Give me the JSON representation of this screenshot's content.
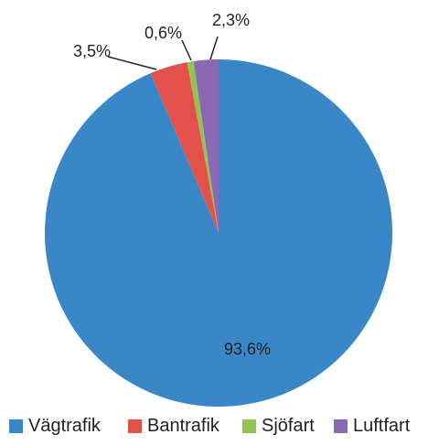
{
  "chart_data": {
    "type": "pie",
    "title": "",
    "slices": [
      {
        "label": "Vägtrafik",
        "value": 93.6,
        "display": "93,6%",
        "color": "#3a87c8"
      },
      {
        "label": "Bantrafik",
        "value": 3.5,
        "display": "3,5%",
        "color": "#e2524a"
      },
      {
        "label": "Sjöfart",
        "value": 0.6,
        "display": "0,6%",
        "color": "#92c44f"
      },
      {
        "label": "Luftfart",
        "value": 2.3,
        "display": "2,3%",
        "color": "#8b68b3"
      }
    ],
    "legend_position": "bottom"
  }
}
